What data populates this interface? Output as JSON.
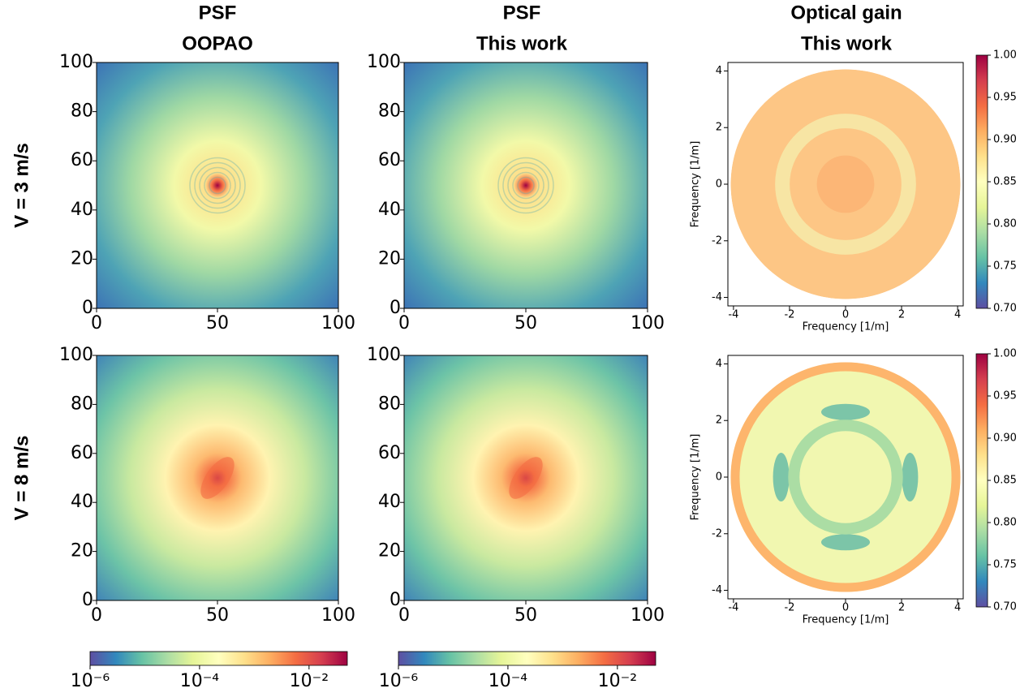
{
  "chart_data": [
    {
      "type": "heatmap",
      "title": [
        "PSF",
        "OOPAO"
      ],
      "row_label": "V = 3 m/s",
      "xlim": [
        0,
        100
      ],
      "ylim": [
        0,
        100
      ],
      "xticks": [
        0,
        50,
        100
      ],
      "yticks": [
        0,
        20,
        40,
        60,
        80,
        100
      ]
    },
    {
      "type": "heatmap",
      "title": [
        "PSF",
        "This work"
      ],
      "xlim": [
        0,
        100
      ],
      "ylim": [
        0,
        100
      ],
      "xticks": [
        0,
        50,
        100
      ],
      "yticks": [
        0,
        20,
        40,
        60,
        80,
        100
      ]
    },
    {
      "type": "heatmap",
      "title": [
        "Optical gain",
        "This work"
      ],
      "xlabel": "Frequency [1/m]",
      "ylabel": "Frequency [1/m]",
      "xlim": [
        -4.2,
        4.2
      ],
      "ylim": [
        -4.3,
        4.3
      ],
      "xticks": [
        -4,
        -2,
        0,
        2,
        4
      ],
      "yticks": [
        -4,
        -2,
        0,
        2,
        4
      ],
      "colorbar": {
        "lim": [
          0.7,
          1.0
        ],
        "ticks": [
          {
            "value": 0.7,
            "label": "0.70"
          },
          0.75,
          {
            "value": 0.8,
            "label": "0.80"
          },
          0.85,
          {
            "value": 0.9,
            "label": "0.90"
          },
          0.95,
          {
            "value": 1.0,
            "label": "1.00"
          }
        ]
      }
    },
    {
      "type": "heatmap",
      "row_label": "V = 8 m/s",
      "xlim": [
        0,
        100
      ],
      "ylim": [
        0,
        100
      ],
      "xticks": [
        0,
        50,
        100
      ],
      "yticks": [
        0,
        20,
        40,
        60,
        80,
        100
      ]
    },
    {
      "type": "heatmap",
      "xlim": [
        0,
        100
      ],
      "ylim": [
        0,
        100
      ],
      "xticks": [
        0,
        50,
        100
      ],
      "yticks": [
        0,
        20,
        40,
        60,
        80,
        100
      ]
    },
    {
      "type": "heatmap",
      "xlabel": "Frequency [1/m]",
      "ylabel": "Frequency [1/m]",
      "xlim": [
        -4.2,
        4.2
      ],
      "ylim": [
        -4.3,
        4.3
      ],
      "xticks": [
        -4,
        -2,
        0,
        2,
        4
      ],
      "yticks": [
        -4,
        -2,
        0,
        2,
        4
      ],
      "colorbar": {
        "lim": [
          0.7,
          1.0
        ],
        "ticks": [
          {
            "value": 0.7,
            "label": "0.70"
          },
          0.75,
          {
            "value": 0.8,
            "label": "0.80"
          },
          0.85,
          {
            "value": 0.9,
            "label": "0.90"
          },
          0.95,
          {
            "value": 1.0,
            "label": "1.00"
          }
        ]
      }
    },
    {
      "type": "colorbar",
      "log": true,
      "lim": [
        1e-06,
        0.05
      ],
      "ticks": [
        {
          "value": 1e-06,
          "label": "10⁻⁶"
        },
        {
          "value": 0.0001,
          "label": "10⁻⁴"
        },
        {
          "value": 0.01,
          "label": "10⁻²"
        }
      ]
    },
    {
      "type": "colorbar",
      "log": true,
      "lim": [
        1e-06,
        0.05
      ],
      "ticks": [
        {
          "value": 1e-06,
          "label": "10⁻⁶"
        },
        {
          "value": 0.0001,
          "label": "10⁻⁴"
        },
        {
          "value": 0.01,
          "label": "10⁻²"
        }
      ]
    }
  ]
}
